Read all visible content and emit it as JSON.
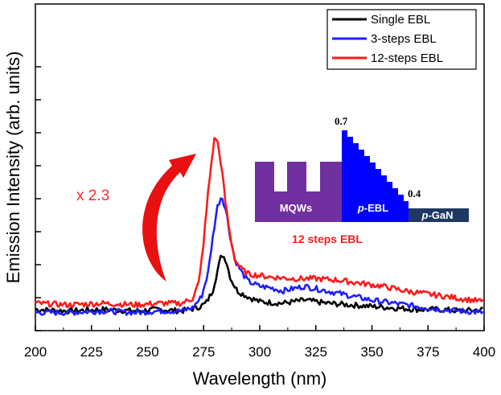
{
  "chart_data": {
    "type": "line",
    "xlabel": "Wavelength (nm)",
    "ylabel": "Emission Intensity (arb. units)",
    "xlim": [
      200,
      400
    ],
    "ylim": [
      0,
      1
    ],
    "x_ticks": [
      "200",
      "225",
      "250",
      "275",
      "300",
      "325",
      "350",
      "375",
      "400"
    ],
    "y_tick_labels_shown": false,
    "legend": {
      "position": "top-right"
    },
    "series": [
      {
        "name": "Single EBL",
        "color": "#000000",
        "points": [
          [
            200,
            0.04
          ],
          [
            215,
            0.035
          ],
          [
            230,
            0.04
          ],
          [
            245,
            0.035
          ],
          [
            255,
            0.04
          ],
          [
            265,
            0.035
          ],
          [
            272,
            0.045
          ],
          [
            276,
            0.06
          ],
          [
            279,
            0.1
          ],
          [
            281,
            0.16
          ],
          [
            283,
            0.22
          ],
          [
            285,
            0.2
          ],
          [
            287,
            0.14
          ],
          [
            290,
            0.1
          ],
          [
            295,
            0.08
          ],
          [
            300,
            0.065
          ],
          [
            310,
            0.06
          ],
          [
            320,
            0.07
          ],
          [
            330,
            0.06
          ],
          [
            340,
            0.055
          ],
          [
            350,
            0.05
          ],
          [
            360,
            0.045
          ],
          [
            370,
            0.04
          ],
          [
            380,
            0.04
          ],
          [
            390,
            0.035
          ],
          [
            400,
            0.04
          ]
        ]
      },
      {
        "name": "3-steps EBL",
        "color": "#1f1fff",
        "points": [
          [
            200,
            0.03
          ],
          [
            215,
            0.03
          ],
          [
            230,
            0.035
          ],
          [
            245,
            0.03
          ],
          [
            255,
            0.035
          ],
          [
            265,
            0.035
          ],
          [
            270,
            0.045
          ],
          [
            274,
            0.08
          ],
          [
            277,
            0.16
          ],
          [
            279,
            0.27
          ],
          [
            281,
            0.37
          ],
          [
            283,
            0.41
          ],
          [
            285,
            0.36
          ],
          [
            287,
            0.27
          ],
          [
            289,
            0.2
          ],
          [
            292,
            0.16
          ],
          [
            295,
            0.13
          ],
          [
            300,
            0.115
          ],
          [
            305,
            0.11
          ],
          [
            310,
            0.1
          ],
          [
            320,
            0.115
          ],
          [
            330,
            0.1
          ],
          [
            340,
            0.085
          ],
          [
            350,
            0.07
          ],
          [
            360,
            0.06
          ],
          [
            370,
            0.05
          ],
          [
            380,
            0.04
          ],
          [
            390,
            0.035
          ],
          [
            400,
            0.03
          ]
        ]
      },
      {
        "name": "12-steps EBL",
        "color": "#ff1a1a",
        "points": [
          [
            200,
            0.06
          ],
          [
            215,
            0.055
          ],
          [
            230,
            0.06
          ],
          [
            245,
            0.055
          ],
          [
            255,
            0.06
          ],
          [
            265,
            0.06
          ],
          [
            270,
            0.075
          ],
          [
            273,
            0.13
          ],
          [
            275,
            0.26
          ],
          [
            277,
            0.42
          ],
          [
            279,
            0.55
          ],
          [
            280,
            0.6
          ],
          [
            281,
            0.59
          ],
          [
            283,
            0.5
          ],
          [
            285,
            0.37
          ],
          [
            287,
            0.27
          ],
          [
            289,
            0.2
          ],
          [
            292,
            0.17
          ],
          [
            295,
            0.155
          ],
          [
            300,
            0.15
          ],
          [
            305,
            0.145
          ],
          [
            315,
            0.14
          ],
          [
            325,
            0.14
          ],
          [
            335,
            0.135
          ],
          [
            345,
            0.125
          ],
          [
            355,
            0.115
          ],
          [
            365,
            0.1
          ],
          [
            375,
            0.09
          ],
          [
            385,
            0.08
          ],
          [
            395,
            0.07
          ],
          [
            400,
            0.065
          ]
        ]
      }
    ],
    "annotations": [
      {
        "text": "x 2.3",
        "note": "enhancement factor with curved red arrow"
      }
    ]
  },
  "annotation": {
    "factor_text": "x 2.3"
  },
  "inset": {
    "mqw_label": "MQWs",
    "ebl_label_italic": "p",
    "ebl_label_rest": "-EBL",
    "gan_label_italic": "p",
    "gan_label_rest": "-GaN",
    "top_value": "0.7",
    "bottom_value": "0.4",
    "caption": "12 steps EBL",
    "mqw_color": "#7030a0",
    "ebl_color": "#0000ff",
    "gan_color": "#1f3864"
  }
}
